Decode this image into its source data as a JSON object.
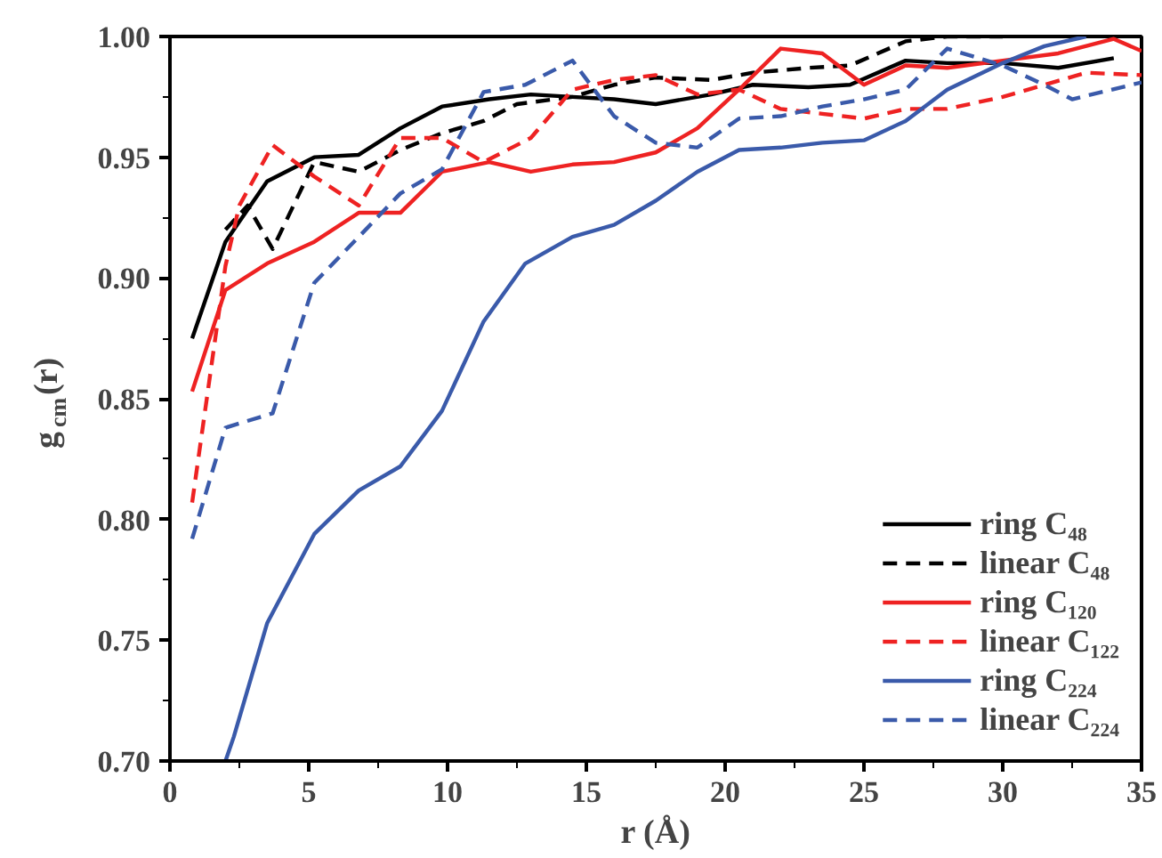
{
  "chart_data": {
    "type": "line",
    "xlabel": "r (Å)",
    "ylabel": "g$_{cm}$(r)",
    "xlim": [
      0,
      35
    ],
    "ylim": [
      0.7,
      1.0
    ],
    "xticks": [
      0,
      5,
      10,
      15,
      20,
      25,
      30,
      35
    ],
    "yticks": [
      {
        "value": 0.7,
        "label": "0.70"
      },
      {
        "value": 0.75,
        "label": "0.75"
      },
      {
        "value": 0.8,
        "label": "0.80"
      },
      {
        "value": 0.85,
        "label": "0.85"
      },
      {
        "value": 0.9,
        "label": "0.90"
      },
      {
        "value": 0.95,
        "label": "0.95"
      },
      {
        "value": 1.0,
        "label": "1.00"
      }
    ],
    "grid": false,
    "legend": "bottom right",
    "marker": "none",
    "series": [
      {
        "name": "ring C₄₈",
        "color": "#000000",
        "line_style": "solid",
        "x": [
          0.8,
          2,
          3.5,
          5.2,
          6.8,
          8.3,
          9.8,
          11.5,
          13,
          14.5,
          16,
          17.5,
          19.5,
          21,
          23,
          24.5,
          26.5,
          28,
          30,
          32,
          34
        ],
        "values": [
          0.875,
          0.915,
          0.94,
          0.95,
          0.951,
          0.962,
          0.971,
          0.974,
          0.976,
          0.975,
          0.974,
          0.972,
          0.976,
          0.98,
          0.979,
          0.98,
          0.99,
          0.989,
          0.989,
          0.987,
          0.991
        ]
      },
      {
        "name": "linear C₄₈",
        "color": "#000000",
        "line_style": "dashed",
        "x": [
          2,
          2.8,
          3.7,
          5.2,
          6.8,
          8.3,
          9.8,
          11.3,
          12.5,
          14.5,
          16,
          17.5,
          19.5,
          21,
          23,
          24.5,
          26.5,
          28,
          30
        ],
        "values": [
          0.92,
          0.93,
          0.912,
          0.948,
          0.944,
          0.953,
          0.96,
          0.965,
          0.972,
          0.975,
          0.98,
          0.983,
          0.982,
          0.985,
          0.987,
          0.988,
          0.998,
          1.0,
          1.0
        ]
      },
      {
        "name": "ring C₁₂₀",
        "color": "#ee2222",
        "line_style": "solid",
        "x": [
          0.8,
          2,
          3.5,
          5.2,
          6.8,
          8.3,
          9.8,
          11.5,
          13,
          14.5,
          16,
          17.5,
          19,
          20.5,
          22,
          23.5,
          25,
          26.5,
          28,
          30,
          32,
          34,
          35
        ],
        "values": [
          0.853,
          0.895,
          0.906,
          0.915,
          0.927,
          0.927,
          0.944,
          0.948,
          0.944,
          0.947,
          0.948,
          0.952,
          0.962,
          0.978,
          0.995,
          0.993,
          0.98,
          0.988,
          0.987,
          0.99,
          0.993,
          0.999,
          0.994
        ]
      },
      {
        "name": "linear C₁₂₂",
        "color": "#ee2222",
        "line_style": "dashed",
        "x": [
          0.8,
          2,
          2.5,
          3.7,
          5.2,
          6.8,
          8.3,
          9.8,
          11.3,
          13,
          14.5,
          16,
          17.5,
          19,
          20.5,
          22,
          23.5,
          25,
          26.5,
          28,
          30,
          31.5,
          33,
          35
        ],
        "values": [
          0.807,
          0.905,
          0.93,
          0.955,
          0.942,
          0.93,
          0.958,
          0.958,
          0.948,
          0.958,
          0.978,
          0.982,
          0.984,
          0.976,
          0.978,
          0.97,
          0.968,
          0.966,
          0.97,
          0.97,
          0.975,
          0.98,
          0.985,
          0.984
        ]
      },
      {
        "name": "ring C₂₂₄",
        "color": "#3a5aaa",
        "line_style": "solid",
        "x": [
          2,
          2.3,
          3.5,
          5.2,
          6.8,
          8.3,
          9.8,
          11.3,
          12.8,
          14.5,
          16,
          17.5,
          19,
          20.5,
          22,
          23.5,
          25,
          26.5,
          28,
          30,
          31.5,
          33
        ],
        "values": [
          0.7,
          0.71,
          0.757,
          0.794,
          0.812,
          0.822,
          0.845,
          0.882,
          0.906,
          0.917,
          0.922,
          0.932,
          0.944,
          0.953,
          0.954,
          0.956,
          0.957,
          0.965,
          0.978,
          0.989,
          0.996,
          1.0
        ]
      },
      {
        "name": "linear C₂₂₄",
        "color": "#3a5aaa",
        "line_style": "dashed",
        "x": [
          0.8,
          2,
          3.7,
          5.2,
          6.8,
          8.3,
          9.8,
          11.3,
          12.8,
          14.5,
          16,
          17.5,
          19,
          20.5,
          22,
          23.5,
          25,
          26.5,
          28,
          30,
          31.5,
          32.5,
          35
        ],
        "values": [
          0.792,
          0.838,
          0.844,
          0.898,
          0.917,
          0.935,
          0.945,
          0.977,
          0.98,
          0.99,
          0.967,
          0.956,
          0.954,
          0.966,
          0.967,
          0.971,
          0.974,
          0.978,
          0.995,
          0.988,
          0.98,
          0.974,
          0.981
        ]
      }
    ]
  }
}
